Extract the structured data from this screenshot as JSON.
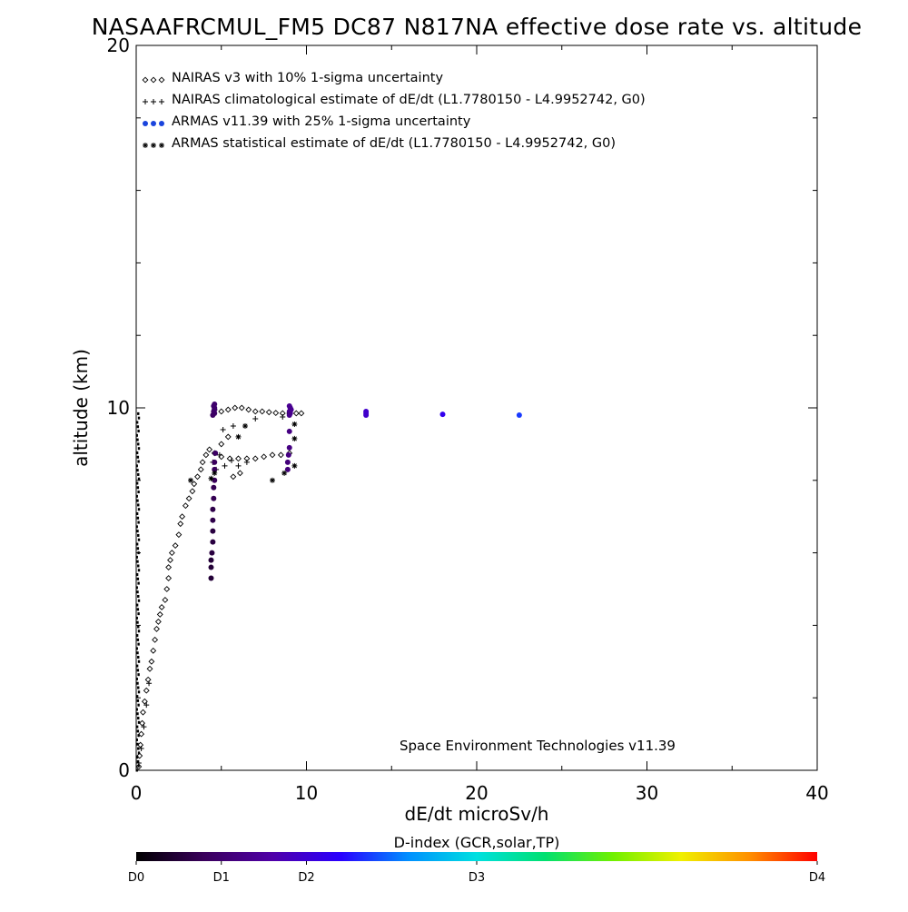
{
  "chart_data": {
    "type": "scatter",
    "title": "NASAAFRCMUL_FM5 DC87 N817NA effective dose rate vs. altitude",
    "xlabel": "dE/dt microSv/h",
    "ylabel": "altitude (km)",
    "xlim": [
      0,
      40
    ],
    "ylim": [
      0,
      20
    ],
    "x_ticks": [
      "0",
      "10",
      "20",
      "30",
      "40"
    ],
    "y_ticks": [
      "0",
      "10",
      "20"
    ],
    "grid": false,
    "legend_position": "top-left",
    "annotation": "Space Environment Technologies v11.39",
    "colorbar": {
      "title": "D-index (GCR,solar,TP)",
      "labels": [
        "D0",
        "D1",
        "D2",
        "D3",
        "D4"
      ],
      "label_values": [
        0,
        0.125,
        0.25,
        0.5,
        1.0
      ],
      "colors": [
        "#000000",
        "#3a005c",
        "#5000a8",
        "#2a00ff",
        "#0090ff",
        "#00e0e0",
        "#00e070",
        "#70f000",
        "#f0f000",
        "#ff9000",
        "#ff0000"
      ]
    },
    "series": [
      {
        "name": "NAIRAS v3 with 10% 1-sigma uncertainty",
        "marker": "diamond",
        "points": [
          [
            0.15,
            0.1
          ],
          [
            0.2,
            0.4
          ],
          [
            0.25,
            0.7
          ],
          [
            0.3,
            1.0
          ],
          [
            0.35,
            1.3
          ],
          [
            0.4,
            1.6
          ],
          [
            0.5,
            1.9
          ],
          [
            0.6,
            2.2
          ],
          [
            0.7,
            2.5
          ],
          [
            0.8,
            2.8
          ],
          [
            0.9,
            3.0
          ],
          [
            1.0,
            3.3
          ],
          [
            1.1,
            3.6
          ],
          [
            1.2,
            3.9
          ],
          [
            1.3,
            4.1
          ],
          [
            1.4,
            4.3
          ],
          [
            1.5,
            4.5
          ],
          [
            1.7,
            4.7
          ],
          [
            1.8,
            5.0
          ],
          [
            1.9,
            5.3
          ],
          [
            1.9,
            5.6
          ],
          [
            2.0,
            5.8
          ],
          [
            2.1,
            6.0
          ],
          [
            2.3,
            6.2
          ],
          [
            2.5,
            6.5
          ],
          [
            2.6,
            6.8
          ],
          [
            2.7,
            7.0
          ],
          [
            2.9,
            7.3
          ],
          [
            3.1,
            7.5
          ],
          [
            3.3,
            7.7
          ],
          [
            3.4,
            7.9
          ],
          [
            3.6,
            8.1
          ],
          [
            3.8,
            8.3
          ],
          [
            3.9,
            8.5
          ],
          [
            4.1,
            8.7
          ],
          [
            4.3,
            8.85
          ],
          [
            4.6,
            8.75
          ],
          [
            5.0,
            8.65
          ],
          [
            5.5,
            8.6
          ],
          [
            6.0,
            8.6
          ],
          [
            6.5,
            8.6
          ],
          [
            7.0,
            8.6
          ],
          [
            7.5,
            8.65
          ],
          [
            8.0,
            8.7
          ],
          [
            8.5,
            8.7
          ],
          [
            9.0,
            8.75
          ],
          [
            5.7,
            8.1
          ],
          [
            6.1,
            8.2
          ],
          [
            5.4,
            9.2
          ],
          [
            5.0,
            9.0
          ],
          [
            4.6,
            9.95
          ],
          [
            5.0,
            9.9
          ],
          [
            5.4,
            9.95
          ],
          [
            5.8,
            10.0
          ],
          [
            6.2,
            10.0
          ],
          [
            6.6,
            9.95
          ],
          [
            7.0,
            9.9
          ],
          [
            7.4,
            9.9
          ],
          [
            7.8,
            9.88
          ],
          [
            8.2,
            9.86
          ],
          [
            8.6,
            9.85
          ],
          [
            9.0,
            9.85
          ],
          [
            9.4,
            9.85
          ],
          [
            9.7,
            9.85
          ]
        ]
      },
      {
        "name": "NAIRAS climatological estimate of dE/dt (L1.7780150 - L4.9952742, G0)",
        "marker": "plus",
        "points": [
          [
            0.15,
            0.2
          ],
          [
            0.3,
            0.6
          ],
          [
            0.45,
            1.2
          ],
          [
            0.6,
            1.8
          ],
          [
            0.75,
            2.4
          ],
          [
            4.5,
            8.5
          ],
          [
            4.7,
            8.3
          ],
          [
            4.9,
            8.7
          ],
          [
            5.2,
            8.4
          ],
          [
            5.6,
            8.55
          ],
          [
            6.0,
            8.4
          ],
          [
            6.5,
            8.5
          ],
          [
            5.1,
            9.4
          ],
          [
            5.7,
            9.5
          ],
          [
            7.0,
            9.7
          ],
          [
            8.6,
            9.75
          ]
        ]
      },
      {
        "name": "ARMAS v11.39 with 25% 1-sigma uncertainty",
        "marker": "dot",
        "points": [
          [
            4.4,
            5.3,
            0.06
          ],
          [
            4.4,
            5.6,
            0.06
          ],
          [
            4.4,
            5.8,
            0.06
          ],
          [
            4.45,
            6.0,
            0.07
          ],
          [
            4.5,
            6.3,
            0.07
          ],
          [
            4.5,
            6.6,
            0.07
          ],
          [
            4.5,
            6.9,
            0.08
          ],
          [
            4.5,
            7.2,
            0.08
          ],
          [
            4.55,
            7.5,
            0.09
          ],
          [
            4.55,
            7.8,
            0.09
          ],
          [
            4.6,
            8.0,
            0.1
          ],
          [
            4.6,
            8.3,
            0.1
          ],
          [
            4.6,
            8.5,
            0.1
          ],
          [
            4.65,
            8.75,
            0.11
          ],
          [
            4.5,
            9.8,
            0.11
          ],
          [
            4.6,
            9.85,
            0.11
          ],
          [
            4.55,
            9.9,
            0.11
          ],
          [
            4.6,
            9.95,
            0.12
          ],
          [
            4.6,
            10.0,
            0.12
          ],
          [
            4.55,
            10.05,
            0.12
          ],
          [
            4.6,
            10.1,
            0.12
          ],
          [
            8.9,
            8.3,
            0.14
          ],
          [
            8.9,
            8.5,
            0.14
          ],
          [
            8.95,
            8.7,
            0.15
          ],
          [
            9.0,
            8.9,
            0.15
          ],
          [
            9.0,
            9.35,
            0.15
          ],
          [
            9.0,
            9.8,
            0.16
          ],
          [
            9.05,
            9.85,
            0.16
          ],
          [
            9.0,
            9.9,
            0.16
          ],
          [
            9.1,
            9.95,
            0.17
          ],
          [
            9.05,
            10.0,
            0.17
          ],
          [
            9.0,
            10.05,
            0.17
          ],
          [
            13.5,
            9.8,
            0.24
          ],
          [
            13.5,
            9.85,
            0.24
          ],
          [
            13.5,
            9.9,
            0.24
          ],
          [
            18.0,
            9.82,
            0.28
          ],
          [
            22.5,
            9.8,
            0.34
          ]
        ]
      },
      {
        "name": "ARMAS statistical estimate of dE/dt (L1.7780150 - L4.9952742, G0)",
        "marker": "asterisk",
        "points": [
          [
            3.2,
            8.0
          ],
          [
            4.4,
            8.05
          ],
          [
            4.6,
            8.2
          ],
          [
            6.0,
            9.2
          ],
          [
            6.4,
            9.5
          ],
          [
            8.0,
            8.0
          ],
          [
            8.7,
            8.2
          ],
          [
            9.3,
            8.4
          ],
          [
            9.3,
            9.15
          ],
          [
            9.3,
            9.55
          ]
        ]
      }
    ],
    "near_zero_column": {
      "ymin": 0,
      "ymax": 9.9,
      "x": 0.1
    }
  }
}
